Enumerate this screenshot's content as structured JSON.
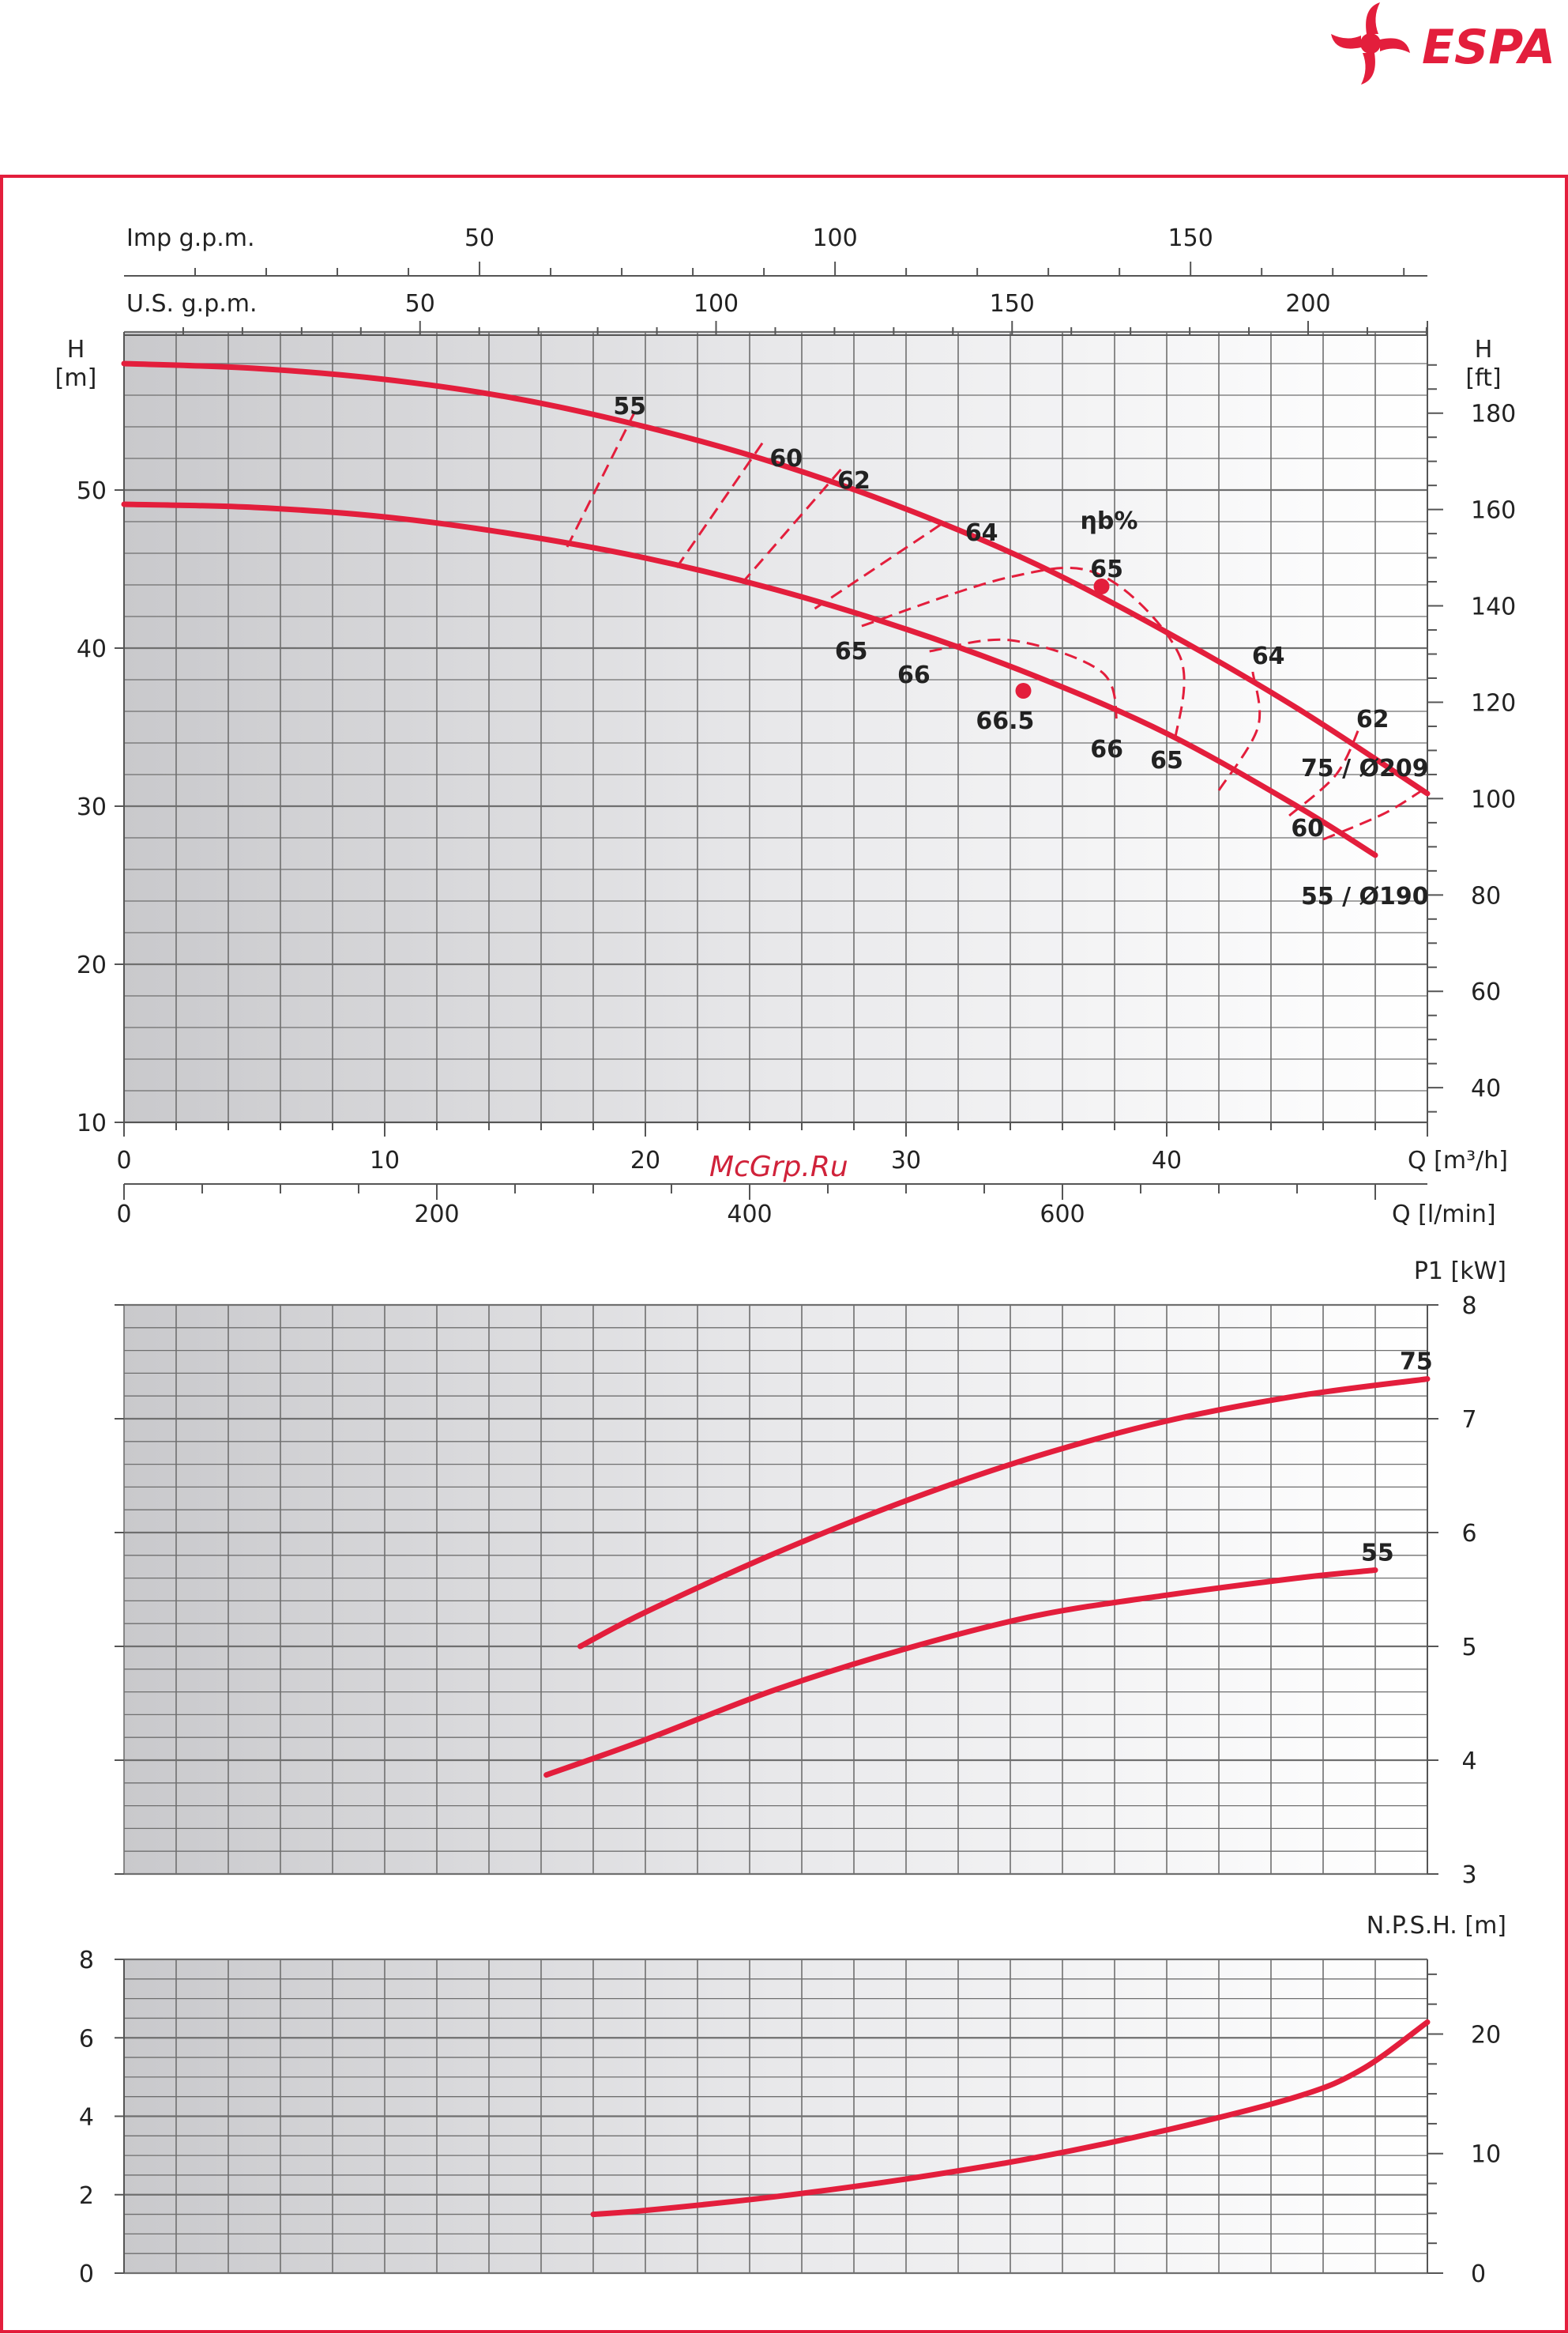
{
  "brand": {
    "name": "ESPA",
    "color": "#e31e3c"
  },
  "watermark": "McGrp.Ru",
  "colors": {
    "curve": "#e31e3c",
    "frame": "#e31e3c",
    "grid": "#6f6f6f"
  },
  "chart_data": [
    {
      "id": "head",
      "type": "line",
      "xlabel": "Q [m³/h]",
      "ylabel_left": "H\n[m]",
      "ylabel_right": "H\n[ft]",
      "xlim": [
        0,
        50
      ],
      "ylim": [
        10,
        60
      ],
      "x_ticks": [
        0,
        10,
        20,
        30,
        40
      ],
      "y_ticks": [
        10,
        20,
        30,
        40,
        50
      ],
      "right_ticks": [
        40,
        60,
        80,
        100,
        120,
        140,
        160,
        180
      ],
      "top_axes": [
        {
          "label": "Imp g.p.m.",
          "ticks": [
            50,
            100,
            150
          ],
          "factor": 3.6662
        },
        {
          "label": "U.S. g.p.m.",
          "ticks": [
            50,
            100,
            150,
            200
          ],
          "factor": 4.4029
        }
      ],
      "bottom_axis2": {
        "label": "Q [l/min]",
        "ticks": [
          0,
          200,
          400,
          600
        ],
        "factor": 16.6667
      },
      "series": [
        {
          "name": "75 / Ø209",
          "x": [
            0,
            5,
            10,
            15,
            20,
            25,
            30,
            35,
            40,
            45,
            50
          ],
          "y": [
            58.0,
            57.7,
            57.0,
            55.8,
            54.0,
            51.7,
            48.8,
            45.3,
            41.0,
            36.2,
            30.8
          ]
        },
        {
          "name": "55 / Ø190",
          "x": [
            0,
            5,
            10,
            15,
            20,
            25,
            30,
            35,
            40,
            45,
            48
          ],
          "y": [
            49.1,
            48.9,
            48.3,
            47.2,
            45.7,
            43.7,
            41.2,
            38.2,
            34.6,
            30.0,
            26.9
          ]
        }
      ],
      "bep_points": [
        {
          "x": 37.5,
          "y": 43.9
        },
        {
          "x": 34.5,
          "y": 37.3
        }
      ],
      "efficiency_title": "ηb%",
      "efficiency_curves": [
        {
          "label": "55",
          "x": [
            17,
            19.7
          ],
          "y": [
            46.4,
            55.3
          ]
        },
        {
          "label": "60",
          "x": [
            21.2,
            24.5
          ],
          "y": [
            45.1,
            53.0
          ]
        },
        {
          "label": "62",
          "x": [
            23.7,
            27.5
          ],
          "y": [
            44.1,
            51.3
          ]
        },
        {
          "label": "64",
          "x": [
            26.5,
            31.5
          ],
          "y": [
            42.5,
            48.0
          ]
        },
        {
          "label": "65",
          "x": [
            28.3,
            34.0,
            37.5,
            40.5,
            40.3
          ],
          "y": [
            41.4,
            44.5,
            44.6,
            39.5,
            34.0
          ]
        },
        {
          "label": "66",
          "x": [
            30.9,
            34.0,
            37.5,
            38.1
          ],
          "y": [
            39.8,
            40.5,
            38.5,
            35.2
          ]
        },
        {
          "label": "64",
          "x": [
            42.0,
            43.5,
            43.3
          ],
          "y": [
            31.0,
            35.0,
            38.5
          ]
        },
        {
          "label": "62",
          "x": [
            44.7,
            46.5,
            47.4
          ],
          "y": [
            29.4,
            32.0,
            35.0
          ]
        },
        {
          "label": "60",
          "x": [
            46.0,
            48.3,
            49.8
          ],
          "y": [
            27.9,
            29.5,
            31.0
          ]
        }
      ],
      "efficiency_labels": [
        {
          "text": "55",
          "x": 19.4,
          "y": 55.3
        },
        {
          "text": "60",
          "x": 25.4,
          "y": 52.0
        },
        {
          "text": "62",
          "x": 28.0,
          "y": 50.6
        },
        {
          "text": "64",
          "x": 32.9,
          "y": 47.3
        },
        {
          "text": "65",
          "x": 37.7,
          "y": 45.0
        },
        {
          "text": "64",
          "x": 43.9,
          "y": 39.5
        },
        {
          "text": "62",
          "x": 47.9,
          "y": 35.5
        },
        {
          "text": "65",
          "x": 27.9,
          "y": 39.8
        },
        {
          "text": "66",
          "x": 30.3,
          "y": 38.3
        },
        {
          "text": "66.5",
          "x": 33.8,
          "y": 35.4
        },
        {
          "text": "66",
          "x": 37.7,
          "y": 33.6
        },
        {
          "text": "65",
          "x": 40.0,
          "y": 32.9
        },
        {
          "text": "60",
          "x": 45.4,
          "y": 28.6
        }
      ],
      "curve_labels": [
        {
          "text": "75 / Ø209",
          "x": 47.6,
          "y": 32.4
        },
        {
          "text": "55 / Ø190",
          "x": 47.6,
          "y": 24.3
        }
      ]
    },
    {
      "id": "power",
      "type": "line",
      "ylabel": "P1 [kW]",
      "xlim": [
        0,
        50
      ],
      "ylim": [
        3,
        8
      ],
      "y_ticks": [
        3,
        4,
        5,
        6,
        7,
        8
      ],
      "series": [
        {
          "name": "75",
          "x": [
            17.5,
            20,
            25,
            30,
            35,
            40,
            45,
            50
          ],
          "y": [
            5.0,
            5.3,
            5.82,
            6.28,
            6.67,
            6.98,
            7.2,
            7.35
          ]
        },
        {
          "name": "55",
          "x": [
            16.2,
            20,
            25,
            30,
            35,
            40,
            45,
            48
          ],
          "y": [
            3.87,
            4.18,
            4.62,
            4.98,
            5.27,
            5.45,
            5.6,
            5.67
          ]
        }
      ]
    },
    {
      "id": "npsh",
      "type": "line",
      "ylabel": "N.P.S.H. [m]",
      "xlim": [
        0,
        50
      ],
      "ylim": [
        0,
        8
      ],
      "y_ticks": [
        0,
        2,
        4,
        6,
        8
      ],
      "right_ticks": [
        0,
        10,
        20
      ],
      "series": [
        {
          "name": "NPSH",
          "x": [
            18,
            20,
            25,
            30,
            35,
            40,
            45,
            47.5,
            50
          ],
          "y": [
            1.5,
            1.6,
            1.95,
            2.4,
            2.95,
            3.65,
            4.5,
            5.2,
            6.4
          ]
        }
      ]
    }
  ]
}
